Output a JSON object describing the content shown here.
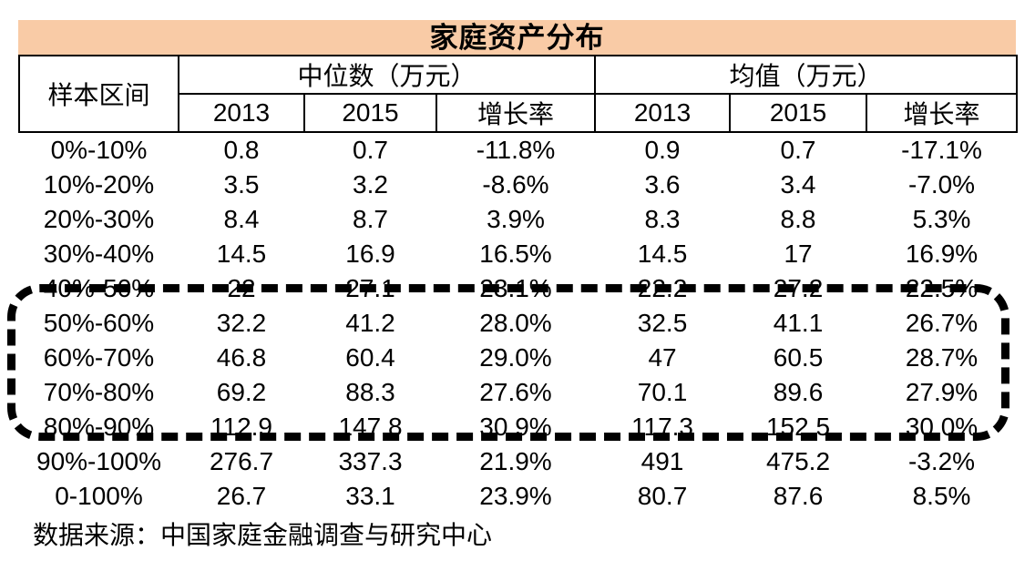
{
  "colors": {
    "title_bg": "#F9CBA6",
    "border": "#000000",
    "text": "#000000",
    "highlight_box": "#000000"
  },
  "chart_data": {
    "type": "table",
    "title": "家庭资产分布",
    "header_sample": "样本区间",
    "header_median_group": "中位数（万元）",
    "header_mean_group": "均值（万元）",
    "sub_headers": [
      "2013",
      "2015",
      "增长率",
      "2013",
      "2015",
      "增长率"
    ],
    "columns": [
      "样本区间",
      "中位数2013",
      "中位数2015",
      "中位数增长率",
      "均值2013",
      "均值2015",
      "均值增长率"
    ],
    "rows": [
      [
        "0%-10%",
        "0.8",
        "0.7",
        "-11.8%",
        "0.9",
        "0.7",
        "-17.1%"
      ],
      [
        "10%-20%",
        "3.5",
        "3.2",
        "-8.6%",
        "3.6",
        "3.4",
        "-7.0%"
      ],
      [
        "20%-30%",
        "8.4",
        "8.7",
        "3.9%",
        "8.3",
        "8.8",
        "5.3%"
      ],
      [
        "30%-40%",
        "14.5",
        "16.9",
        "16.5%",
        "14.5",
        "17",
        "16.9%"
      ],
      [
        "40%-50%",
        "22",
        "27.1",
        "23.1%",
        "22.2",
        "27.2",
        "22.5%"
      ],
      [
        "50%-60%",
        "32.2",
        "41.2",
        "28.0%",
        "32.5",
        "41.1",
        "26.7%"
      ],
      [
        "60%-70%",
        "46.8",
        "60.4",
        "29.0%",
        "47",
        "60.5",
        "28.7%"
      ],
      [
        "70%-80%",
        "69.2",
        "88.3",
        "27.6%",
        "70.1",
        "89.6",
        "27.9%"
      ],
      [
        "80%-90%",
        "112.9",
        "147.8",
        "30.9%",
        "117.3",
        "152.5",
        "30.0%"
      ],
      [
        "90%-100%",
        "276.7",
        "337.3",
        "21.9%",
        "491",
        "475.2",
        "-3.2%"
      ],
      [
        "0-100%",
        "26.7",
        "33.1",
        "23.9%",
        "80.7",
        "87.6",
        "8.5%"
      ]
    ],
    "highlighted_rows": [
      "50%-60%",
      "60%-70%",
      "70%-80%",
      "80%-90%"
    ],
    "source": "数据来源：中国家庭金融调查与研究中心",
    "legend_position": "none",
    "grid": "header-only"
  }
}
